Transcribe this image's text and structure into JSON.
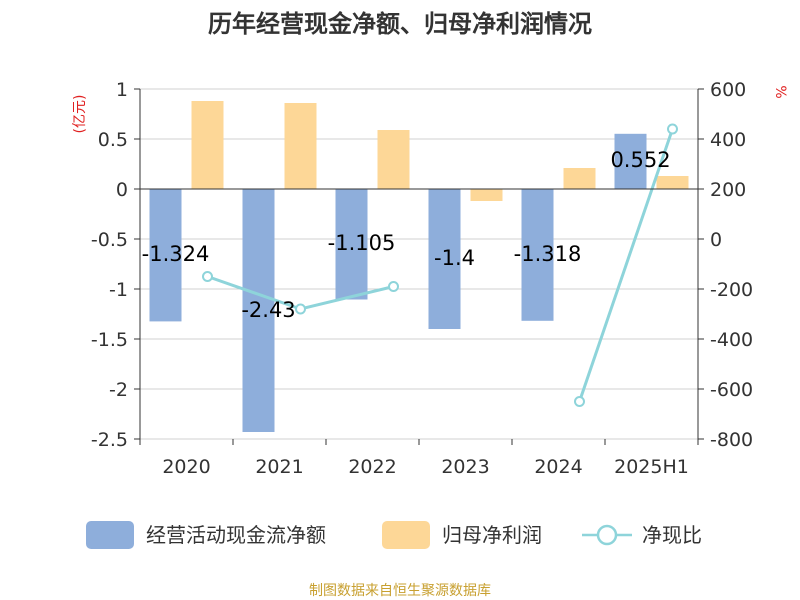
{
  "title": "历年经营现金净额、归母净利润情况",
  "source": "制图数据来自恒生聚源数据库",
  "chart_data": {
    "type": "bar",
    "categories": [
      "2020",
      "2021",
      "2022",
      "2023",
      "2024",
      "2025H1"
    ],
    "left_axis": {
      "unit": "(亿元)",
      "ylim": [
        -2.5,
        1
      ],
      "ticks": [
        1,
        0.5,
        0,
        -0.5,
        -1,
        -1.5,
        -2,
        -2.5
      ],
      "tick_labels": [
        "1",
        "0.5",
        "0",
        "-0.5",
        "-1",
        "-1.5",
        "-2",
        "-2.5"
      ]
    },
    "right_axis": {
      "unit": "%",
      "ylim": [
        -800,
        600
      ],
      "ticks": [
        600,
        400,
        200,
        0,
        -200,
        -400,
        -600,
        -800
      ],
      "tick_labels": [
        "600",
        "400",
        "200",
        "0",
        "-200",
        "-400",
        "-600",
        "-800"
      ]
    },
    "series": [
      {
        "name": "经营活动现金流净额",
        "type": "bar",
        "axis": "left",
        "color": "#8eaedb",
        "values": [
          -1.324,
          -2.43,
          -1.105,
          -1.4,
          -1.318,
          0.552
        ],
        "labels": [
          "-1.324",
          "-2.43",
          "-1.105",
          "-1.4",
          "-1.318",
          "0.552"
        ]
      },
      {
        "name": "归母净利润",
        "type": "bar",
        "axis": "left",
        "color": "#fdd797",
        "values": [
          0.88,
          0.86,
          0.59,
          -0.12,
          0.21,
          0.13
        ]
      },
      {
        "name": "净现比",
        "type": "line",
        "axis": "right",
        "color": "#8ed4da",
        "values": [
          -150,
          -280,
          -190,
          null,
          -650,
          440
        ]
      }
    ],
    "grid": true,
    "legend_position": "bottom"
  }
}
